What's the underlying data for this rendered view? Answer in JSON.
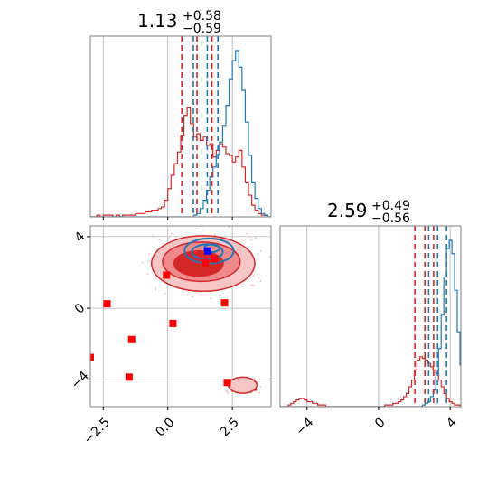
{
  "chart_data": {
    "type": "corner",
    "parameters": [
      {
        "title": {
          "value": "1.13",
          "upper": "+0.58",
          "lower": "−0.59"
        },
        "range": [
          -3.0,
          4.0
        ],
        "ticks": [
          -2.5,
          0.0,
          2.5
        ],
        "tick_labels": [
          "−2.5",
          "0.0",
          "2.5"
        ]
      },
      {
        "title": {
          "value": "2.59",
          "upper": "+0.49",
          "lower": "−0.56"
        },
        "range": [
          -5.5,
          4.6
        ],
        "ticks": [
          -4,
          0,
          4
        ],
        "tick_labels": [
          "−4",
          "0",
          "4"
        ]
      }
    ],
    "marginals": [
      {
        "bin_edges_start": -3.0,
        "bin_width": 0.125,
        "blue": [
          0,
          0,
          0,
          0,
          0,
          0,
          0,
          0,
          0,
          0,
          0,
          0,
          0,
          0,
          0,
          0,
          0,
          0,
          0,
          0,
          0,
          0,
          0,
          0,
          0,
          0,
          0,
          0,
          0,
          0,
          0,
          0,
          1,
          2,
          5,
          10,
          16,
          24,
          30,
          37,
          45,
          55,
          67,
          83,
          94,
          100,
          90,
          76,
          57,
          37,
          21,
          11,
          5,
          2,
          1,
          0,
          0
        ],
        "red": [
          0,
          0,
          1,
          0,
          1,
          1,
          1,
          0,
          1,
          0,
          1,
          1,
          1,
          1,
          2,
          2,
          2,
          3,
          3,
          4,
          4,
          5,
          6,
          10,
          17,
          25,
          32,
          39,
          49,
          61,
          66,
          56,
          48,
          50,
          46,
          48,
          43,
          44,
          36,
          40,
          44,
          42,
          38,
          37,
          33,
          36,
          40,
          30,
          21,
          13,
          7,
          4,
          2,
          1,
          1,
          0,
          0
        ],
        "blue_quantiles": [
          0.99,
          1.53,
          1.94
        ],
        "red_quantiles": [
          0.54,
          1.13,
          1.71
        ]
      },
      {
        "bin_edges_start": -5.5,
        "bin_width": 0.15,
        "blue": [
          0,
          0,
          0,
          0,
          0,
          0,
          0,
          0,
          0,
          0,
          0,
          0,
          0,
          0,
          0,
          0,
          0,
          0,
          0,
          0,
          0,
          0,
          0,
          0,
          0,
          0,
          0,
          0,
          0,
          0,
          0,
          0,
          0,
          0,
          0,
          0,
          0,
          0,
          0,
          0,
          0,
          0,
          0,
          0,
          0,
          0,
          0,
          0,
          0,
          0,
          0,
          0,
          0,
          1,
          2,
          3,
          6,
          10,
          20,
          35,
          55,
          78,
          95,
          100,
          92,
          70,
          45,
          25,
          12,
          5,
          2,
          0
        ],
        "red": [
          0,
          0,
          0,
          1,
          2,
          3,
          4,
          5,
          5,
          4,
          3,
          3,
          2,
          2,
          1,
          1,
          1,
          0,
          0,
          0,
          0,
          0,
          0,
          0,
          0,
          0,
          0,
          0,
          0,
          0,
          0,
          0,
          0,
          0,
          0,
          0,
          0,
          0,
          0,
          1,
          1,
          1,
          2,
          2,
          3,
          4,
          6,
          8,
          12,
          16,
          22,
          28,
          30,
          29,
          28,
          26,
          24,
          22,
          20,
          16,
          12,
          8,
          5,
          3,
          2,
          1,
          1,
          0,
          0,
          0,
          0,
          0
        ],
        "blue_quantiles": [
          2.8,
          3.3,
          3.8
        ],
        "red_quantiles": [
          2.03,
          2.59,
          3.08
        ]
      }
    ],
    "joint": {
      "blue_contour_center": [
        1.6,
        3.2
      ],
      "red_main_center": [
        1.3,
        2.6
      ],
      "red_secondary_center": [
        2.9,
        -4.3
      ],
      "red_points": [
        [
          1.45,
          2.55
        ],
        [
          1.8,
          2.75
        ],
        [
          -0.05,
          1.85
        ],
        [
          -2.35,
          0.25
        ],
        [
          2.2,
          0.3
        ],
        [
          0.2,
          -0.85
        ],
        [
          -1.4,
          -1.75
        ],
        [
          -3.0,
          -2.75
        ],
        [
          -1.5,
          -3.85
        ],
        [
          2.3,
          -4.15
        ]
      ],
      "blue_points": [
        [
          1.55,
          3.2
        ]
      ]
    },
    "colors": {
      "blue": "#1f77b4",
      "red": "#d62728",
      "grid": "#b0b0b0"
    },
    "grid": true
  }
}
